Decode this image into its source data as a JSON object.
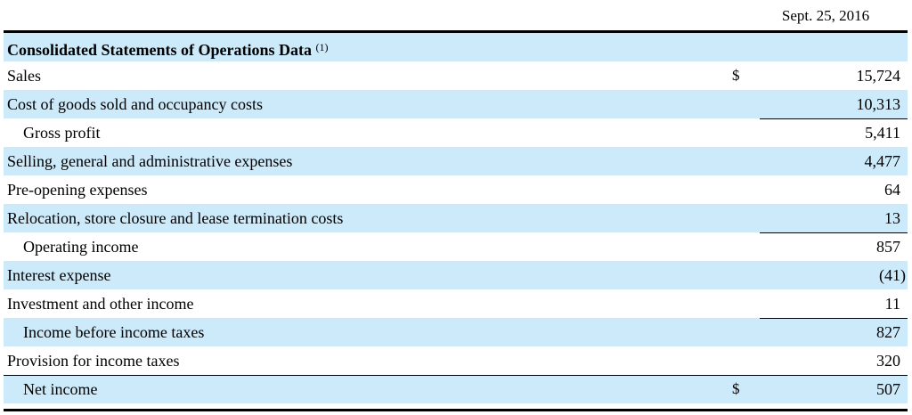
{
  "column_header": "Sept. 25, 2016",
  "section_title": "Consolidated Statements of Operations Data",
  "section_note": "(1)",
  "rows": [
    {
      "label": "Sales",
      "currency": "$",
      "value": "15,724"
    },
    {
      "label": "Cost of goods sold and occupancy costs",
      "currency": "",
      "value": "10,313"
    },
    {
      "label": "Gross profit",
      "currency": "",
      "value": "5,411"
    },
    {
      "label": "Selling, general and administrative expenses",
      "currency": "",
      "value": "4,477"
    },
    {
      "label": "Pre-opening expenses",
      "currency": "",
      "value": "64"
    },
    {
      "label": "Relocation, store closure and lease termination costs",
      "currency": "",
      "value": "13"
    },
    {
      "label": "Operating income",
      "currency": "",
      "value": "857"
    },
    {
      "label": "Interest expense",
      "currency": "",
      "value": "(41)"
    },
    {
      "label": "Investment and other income",
      "currency": "",
      "value": "11"
    },
    {
      "label": "Income before income taxes",
      "currency": "",
      "value": "827"
    },
    {
      "label": "Provision for income taxes",
      "currency": "",
      "value": "320"
    },
    {
      "label": "Net income",
      "currency": "$",
      "value": "507"
    }
  ],
  "colors": {
    "row_shade": "#cdeafa",
    "rule": "#000000"
  }
}
